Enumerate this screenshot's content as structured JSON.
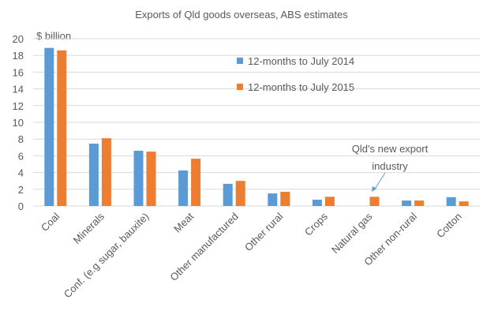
{
  "chart_data": {
    "type": "bar",
    "title": "Exports of Qld goods overseas, ABS estimates",
    "ylabel": "$ billion",
    "ylim": [
      0,
      20
    ],
    "yticks": [
      0,
      2,
      4,
      6,
      8,
      10,
      12,
      14,
      16,
      18,
      20
    ],
    "grid": true,
    "legend_position": "right",
    "categories": [
      "Coal",
      "Minerals",
      "Conf. (e.g sugar, bauxite)",
      "Meat",
      "Other manufactured",
      "Other rural",
      "Crops",
      "Natural gas",
      "Other non-rural",
      "Cotton"
    ],
    "series": [
      {
        "name": "12-months to July 2014",
        "color": "#5b9bd5",
        "values": [
          18.9,
          7.45,
          6.6,
          4.25,
          2.65,
          1.5,
          0.75,
          0,
          0.65,
          1.05
        ]
      },
      {
        "name": "12-months to July 2015",
        "color": "#ed7d31",
        "values": [
          18.6,
          8.1,
          6.5,
          5.65,
          3.0,
          1.7,
          1.1,
          1.1,
          0.65,
          0.55
        ]
      }
    ],
    "annotation": {
      "line1": "Qld's new export",
      "line2": "industry",
      "target_category": "Natural gas"
    }
  }
}
